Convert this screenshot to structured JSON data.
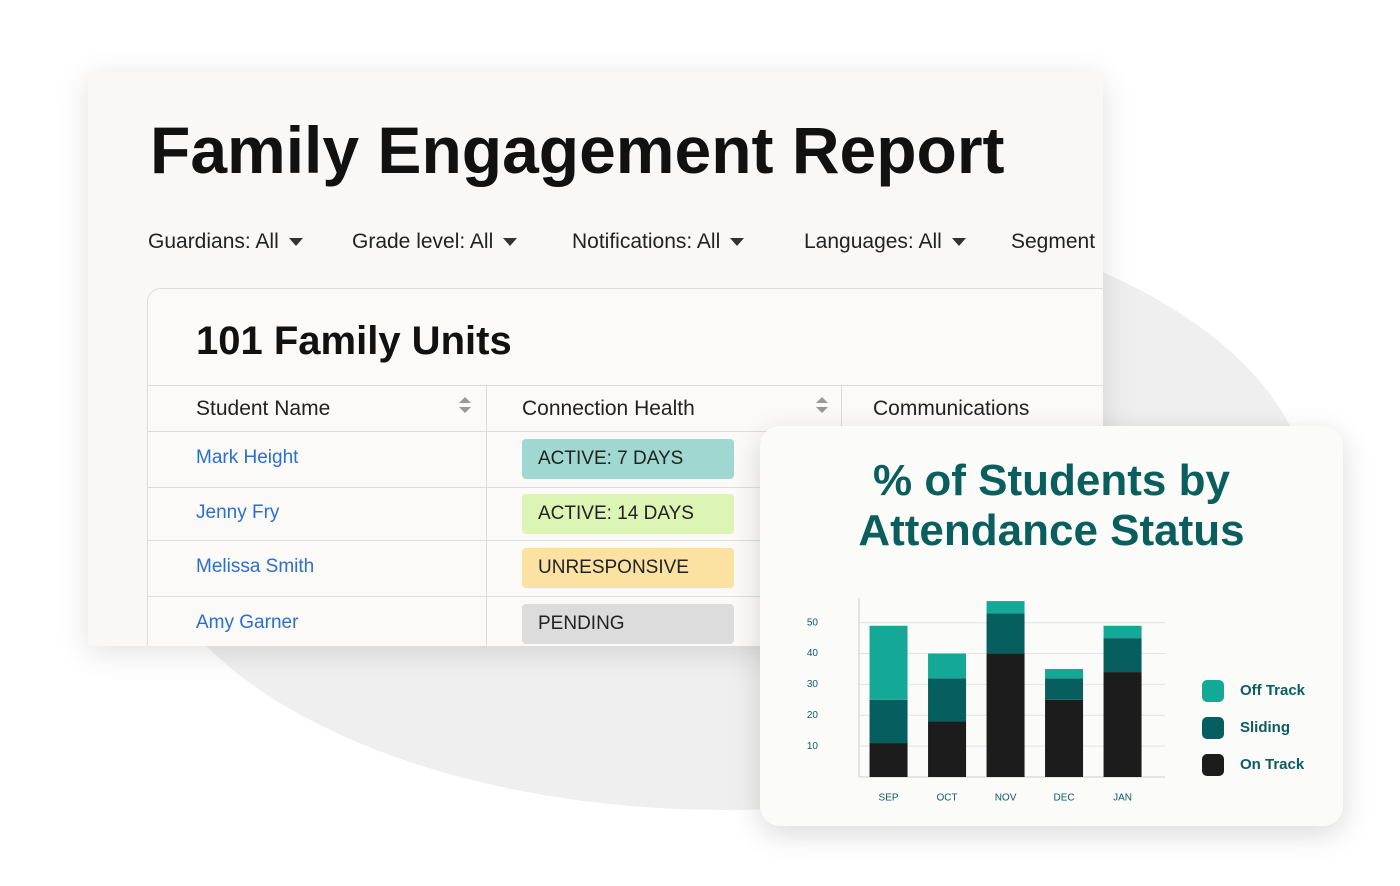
{
  "report": {
    "title": "Family Engagement Report",
    "filters": [
      "Guardians: All",
      "Grade level: All",
      "Notifications: All",
      "Languages: All",
      "Segment"
    ],
    "table": {
      "title": "101 Family Units",
      "columns": [
        "Student Name",
        "Connection Health",
        "Communications"
      ],
      "rows": [
        {
          "name": "Mark Height",
          "status": "ACTIVE: 7 DAYS",
          "color": "#9fd8d0"
        },
        {
          "name": "Jenny Fry",
          "status": "ACTIVE: 14 DAYS",
          "color": "#dcf5b4"
        },
        {
          "name": "Melissa Smith",
          "status": "UNRESPONSIVE",
          "color": "#fbe2a2"
        },
        {
          "name": "Amy Garner",
          "status": "PENDING",
          "color": "#dcdcdc"
        }
      ]
    }
  },
  "chart_data": {
    "type": "stacked_bar",
    "title": "% of Students by Attendance Status",
    "categories": [
      "SEP",
      "OCT",
      "NOV",
      "DEC",
      "JAN"
    ],
    "series": [
      {
        "name": "On Track",
        "color": "#1c1c1c",
        "values": [
          11,
          18,
          40,
          25,
          34
        ]
      },
      {
        "name": "Sliding",
        "color": "#075e5e",
        "values": [
          14,
          14,
          13,
          7,
          11
        ]
      },
      {
        "name": "Off Track",
        "color": "#14a897",
        "values": [
          24,
          8,
          4,
          3,
          4
        ]
      }
    ],
    "ylim": [
      0,
      58
    ],
    "yticks": [
      10,
      20,
      30,
      40,
      50
    ],
    "grid": true,
    "legend": "right"
  }
}
